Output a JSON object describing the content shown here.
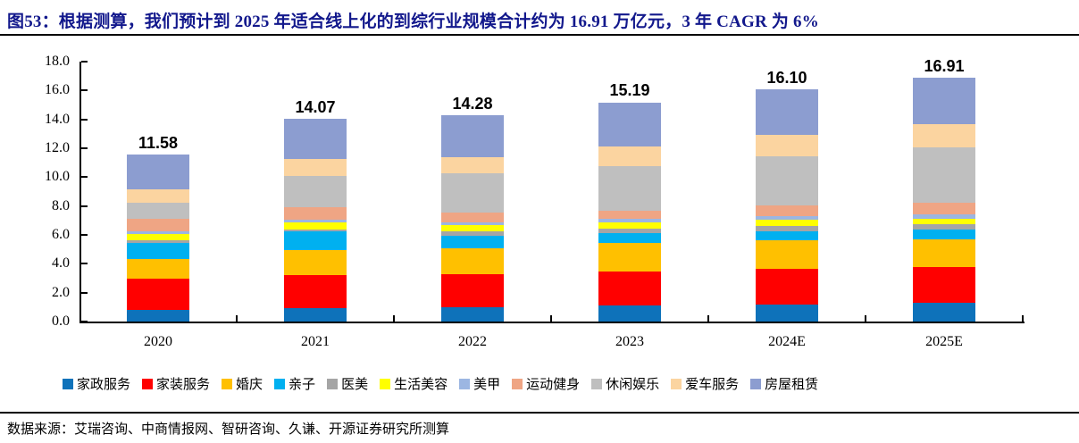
{
  "figure": {
    "title": "图53：根据测算，我们预计到 2025 年适合线上化的到综行业规模合计约为 16.91 万亿元，3 年 CAGR 为 6%",
    "source": "数据来源：艾瑞咨询、中商情报网、智研咨询、久谦、开源证券研究所测算"
  },
  "chart_data": {
    "type": "bar",
    "stacked": true,
    "title": "图53 到综行业规模（万亿元）",
    "categories": [
      "2020",
      "2021",
      "2022",
      "2023",
      "2024E",
      "2025E"
    ],
    "totals": [
      11.58,
      14.07,
      14.28,
      15.19,
      16.1,
      16.91
    ],
    "total_labels": [
      "11.58",
      "14.07",
      "14.28",
      "15.19",
      "16.10",
      "16.91"
    ],
    "series": [
      {
        "name": "家政服务",
        "color": "#0E72BA",
        "values": [
          0.8,
          0.9,
          1.0,
          1.1,
          1.2,
          1.28
        ]
      },
      {
        "name": "家装服务",
        "color": "#FF0000",
        "values": [
          2.2,
          2.3,
          2.25,
          2.35,
          2.45,
          2.5
        ]
      },
      {
        "name": "婚庆",
        "color": "#FFC000",
        "values": [
          1.36,
          1.75,
          1.85,
          2.0,
          2.0,
          1.9
        ]
      },
      {
        "name": "亲子",
        "color": "#00B0F0",
        "values": [
          1.1,
          1.3,
          0.85,
          0.7,
          0.6,
          0.7
        ]
      },
      {
        "name": "医美",
        "color": "#A5A5A5",
        "values": [
          0.2,
          0.15,
          0.3,
          0.3,
          0.35,
          0.35
        ]
      },
      {
        "name": "生活美容",
        "color": "#FFFF00",
        "values": [
          0.41,
          0.45,
          0.45,
          0.4,
          0.45,
          0.4
        ]
      },
      {
        "name": "美甲",
        "color": "#9CB6E2",
        "values": [
          0.19,
          0.2,
          0.2,
          0.25,
          0.25,
          0.28
        ]
      },
      {
        "name": "运动健身",
        "color": "#EFA584",
        "values": [
          0.83,
          0.9,
          0.65,
          0.6,
          0.75,
          0.8
        ]
      },
      {
        "name": "休闲娱乐",
        "color": "#BFBFBF",
        "values": [
          1.15,
          2.15,
          2.7,
          3.05,
          3.4,
          3.85
        ]
      },
      {
        "name": "爱车服务",
        "color": "#FBD4A0",
        "values": [
          0.91,
          1.15,
          1.15,
          1.4,
          1.5,
          1.6
        ]
      },
      {
        "name": "房屋租赁",
        "color": "#8C9DD0",
        "values": [
          2.43,
          2.82,
          2.88,
          3.04,
          3.15,
          3.25
        ]
      }
    ],
    "ylim": [
      0,
      18
    ],
    "ytick_step": 2,
    "ytick_labels": [
      "0.0",
      "2.0",
      "4.0",
      "6.0",
      "8.0",
      "10.0",
      "12.0",
      "14.0",
      "16.0",
      "18.0"
    ],
    "xlabel": "",
    "ylabel": "",
    "grid": false,
    "legend_position": "bottom"
  }
}
